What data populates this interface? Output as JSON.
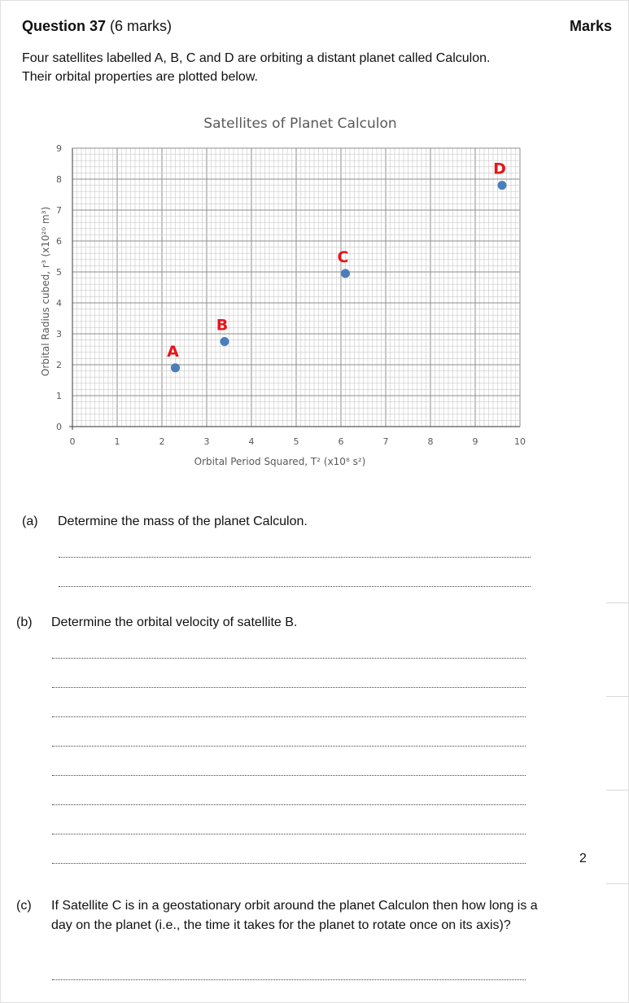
{
  "header": {
    "question_number": "Question 37",
    "question_marks": "(6 marks)",
    "marks_heading": "Marks"
  },
  "intro": {
    "line1": "Four satellites labelled A, B, C and D are orbiting a distant planet called Calculon.",
    "line2": "Their orbital properties are plotted below."
  },
  "chart_data": {
    "type": "scatter",
    "title": "Satellites of Planet Calculon",
    "xlabel": "Orbital Period Squared, T² (x10⁸ s²)",
    "ylabel": "Orbital Radius cubed, r³ (x10²⁰ m³)",
    "xlim": [
      0,
      10
    ],
    "ylim": [
      0,
      9
    ],
    "x_ticks": [
      "0",
      "1",
      "2",
      "3",
      "4",
      "5",
      "6",
      "7",
      "8",
      "9",
      "10"
    ],
    "y_ticks": [
      "0",
      "1",
      "2",
      "3",
      "4",
      "5",
      "6",
      "7",
      "8",
      "9"
    ],
    "grid": true,
    "marker_color": "#4a7ebb",
    "label_color": "#e8141a",
    "points": [
      {
        "label": "A",
        "x": 2.3,
        "y": 1.9
      },
      {
        "label": "B",
        "x": 3.4,
        "y": 2.75
      },
      {
        "label": "C",
        "x": 6.1,
        "y": 4.95
      },
      {
        "label": "D",
        "x": 9.6,
        "y": 7.8
      }
    ]
  },
  "parts": {
    "a": {
      "label": "(a)",
      "text": "Determine the mass of the planet Calculon."
    },
    "b": {
      "label": "(b)",
      "text": "Determine the orbital velocity of satellite B.",
      "marks": "2"
    },
    "c": {
      "label": "(c)",
      "text": "If Satellite C is in a geostationary orbit around the planet Calculon then how long is a day on the planet (i.e., the time it takes for the planet to rotate once on its axis)?"
    }
  }
}
